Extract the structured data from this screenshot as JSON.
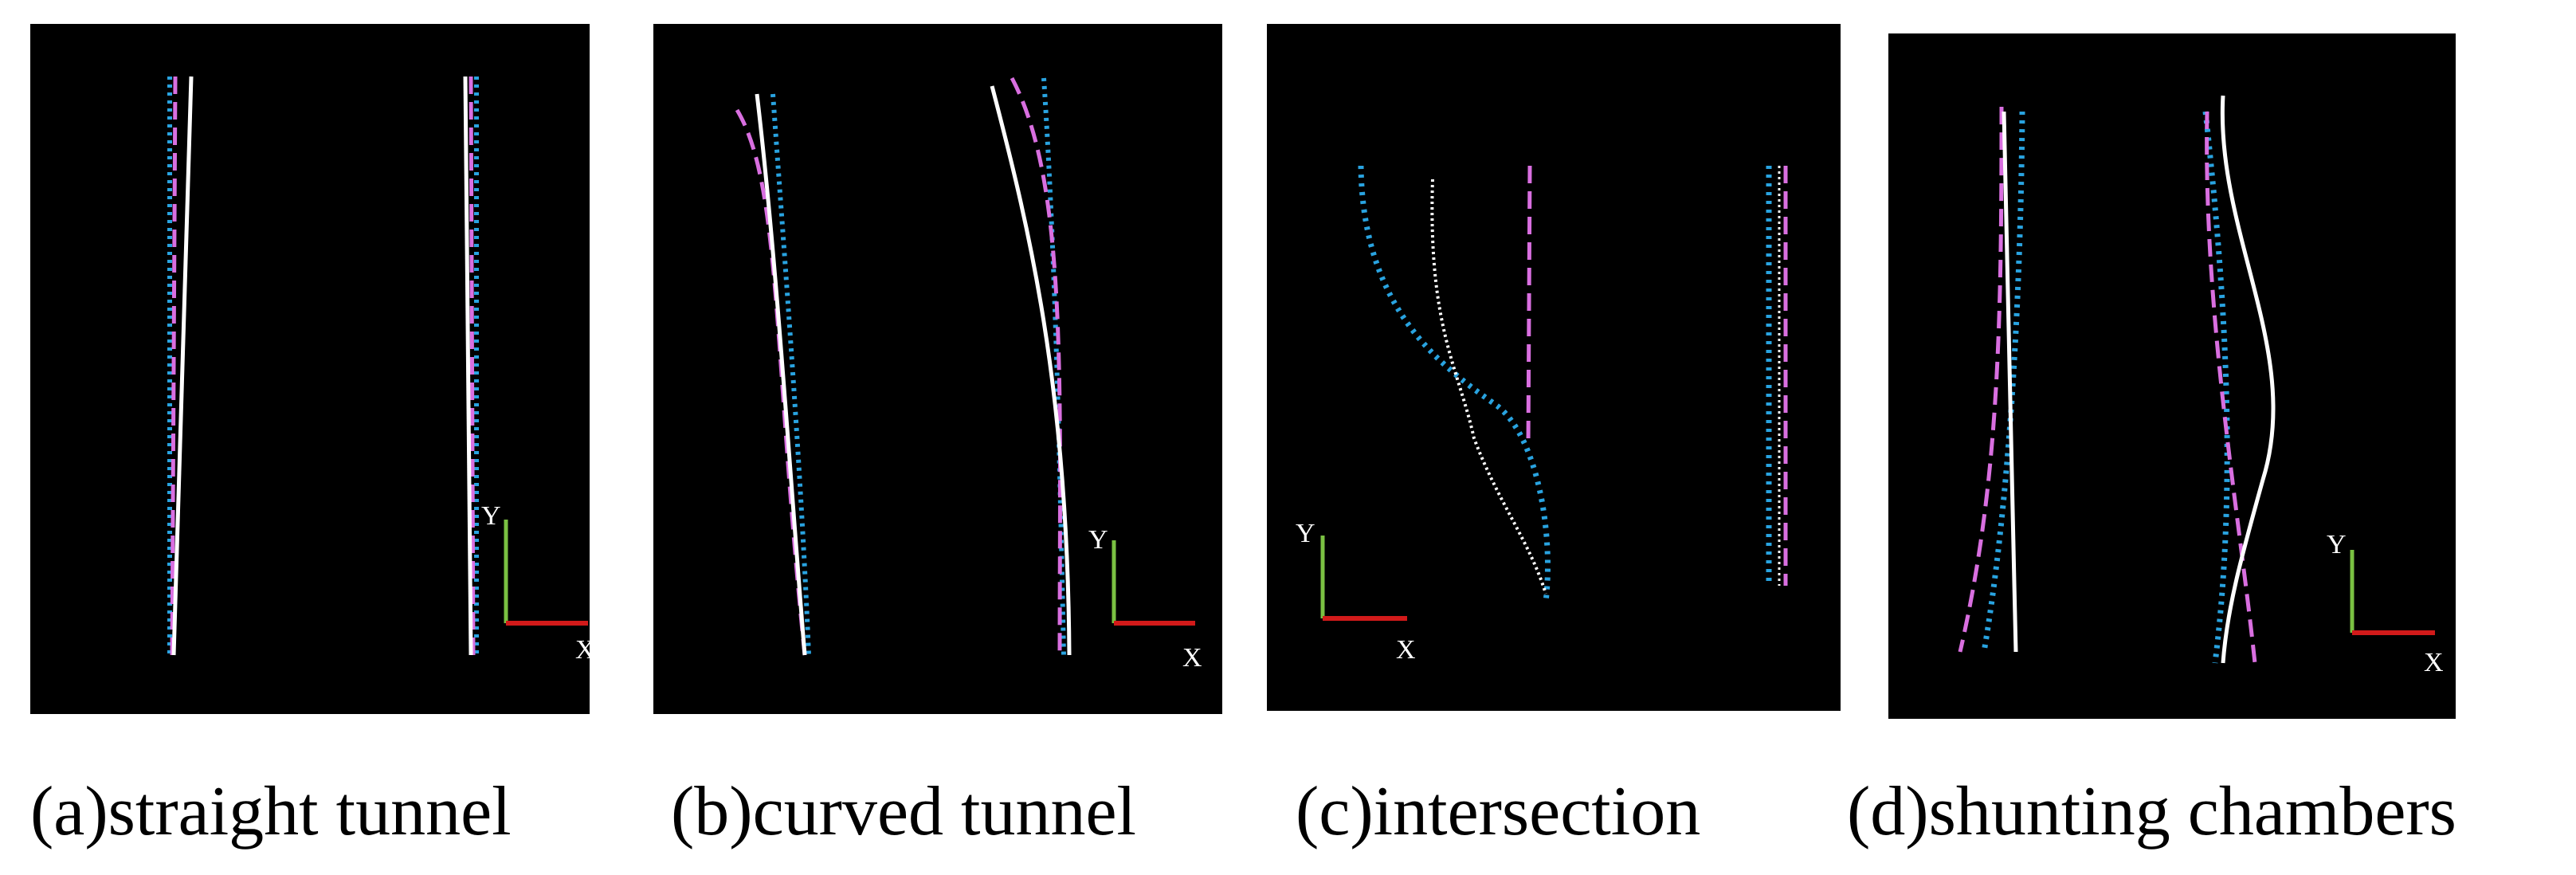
{
  "colors": {
    "background": "#000000",
    "reference_line": "#ffffff",
    "dotted_line": "#29a3e0",
    "dashed_line": "#d96fe0",
    "y_axis": "#7ac142",
    "x_axis": "#d21a1a"
  },
  "axis_labels": {
    "x": "X",
    "y": "Y"
  },
  "panels": [
    {
      "caption": "(a)straight tunnel"
    },
    {
      "caption": "(b)curved tunnel"
    },
    {
      "caption": "(c)intersection"
    },
    {
      "caption": "(d)shunting chambers"
    }
  ]
}
